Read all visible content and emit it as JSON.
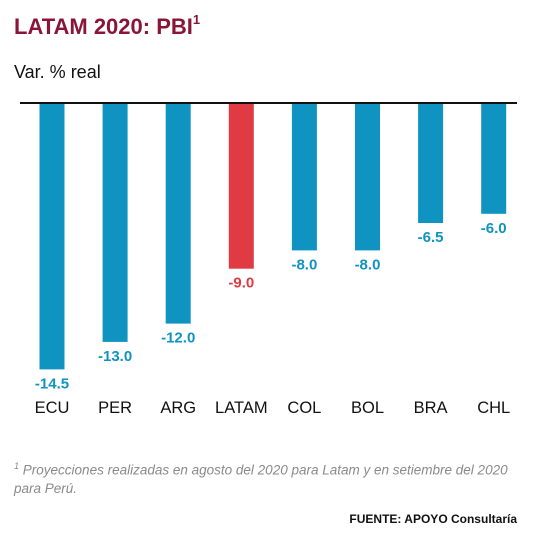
{
  "header": {
    "title": "LATAM 2020: PBI",
    "title_sup": "1"
  },
  "chart_data": {
    "type": "bar",
    "subtitle": "Var. % real",
    "categories": [
      "ECU",
      "PER",
      "ARG",
      "LATAM",
      "COL",
      "BOL",
      "BRA",
      "CHL"
    ],
    "values": [
      -14.5,
      -13.0,
      -12.0,
      -9.0,
      -8.0,
      -8.0,
      -6.5,
      -6.0
    ],
    "value_labels": [
      "-14.5",
      "-13.0",
      "-12.0",
      "-9.0",
      "-8.0",
      "-8.0",
      "-6.5",
      "-6.0"
    ],
    "highlight_category": "LATAM",
    "colors": {
      "default": "#0f93c0",
      "highlight": "#e03a45"
    },
    "ylim": [
      -15,
      0
    ],
    "grid": false,
    "legend": "none"
  },
  "footnote": {
    "sup": "1",
    "text": "Proyecciones realizadas en agosto del 2020 para Latam y en setiembre del 2020 para Perú."
  },
  "source": {
    "text": "FUENTE: APOYO Consultaría"
  }
}
